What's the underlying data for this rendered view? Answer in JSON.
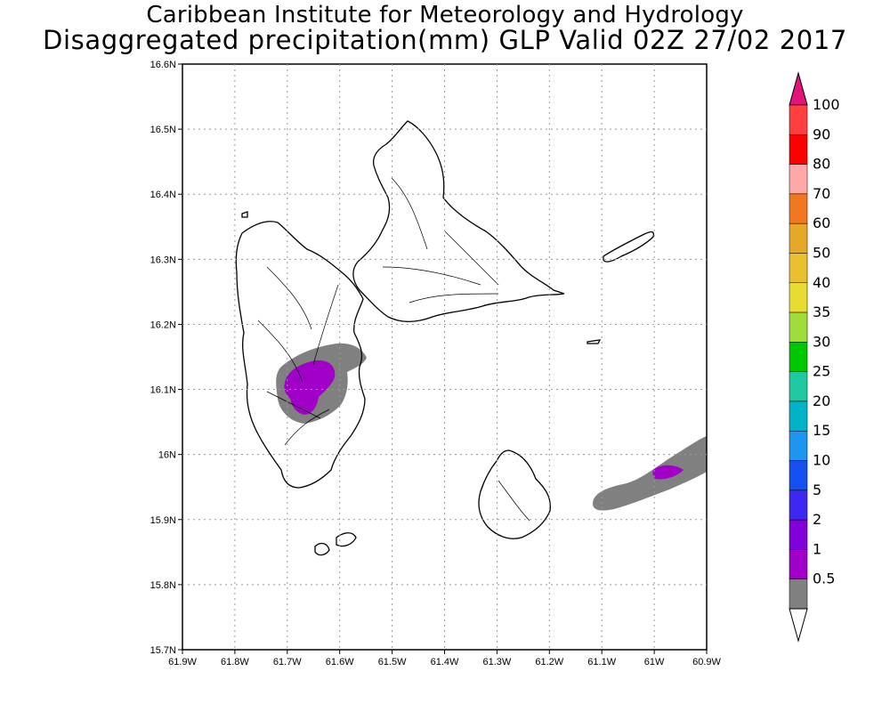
{
  "title_line1": "Caribbean Institute for Meteorology and Hydrology",
  "title_line2": "Disaggregated precipitation(mm) GLP Valid 02Z 27/02 2017",
  "axes": {
    "x_ticks": [
      "61.9W",
      "61.8W",
      "61.7W",
      "61.6W",
      "61.5W",
      "61.4W",
      "61.3W",
      "61.2W",
      "61.1W",
      "61W",
      "60.9W"
    ],
    "y_ticks": [
      "16.6N",
      "16.5N",
      "16.4N",
      "16.3N",
      "16.2N",
      "16.1N",
      "16N",
      "15.9N",
      "15.8N",
      "15.7N"
    ]
  },
  "colorbar": {
    "labels": [
      "100",
      "90",
      "80",
      "70",
      "60",
      "50",
      "40",
      "35",
      "30",
      "25",
      "20",
      "15",
      "10",
      "5",
      "2",
      "1",
      "0.5"
    ],
    "colors": [
      "#ff3f3f",
      "#ff0000",
      "#ffa8a8",
      "#f07820",
      "#e6a828",
      "#e8c030",
      "#e6dc32",
      "#a0dc3c",
      "#00c800",
      "#20c8a0",
      "#00b4c8",
      "#1e96f0",
      "#1450f0",
      "#3c28f0",
      "#8200dc",
      "#a000c8",
      "#808080"
    ],
    "top_arrow_color": "#e0147a"
  },
  "precip": {
    "light_color": "#808080",
    "heavy_color": "#a000c8"
  }
}
